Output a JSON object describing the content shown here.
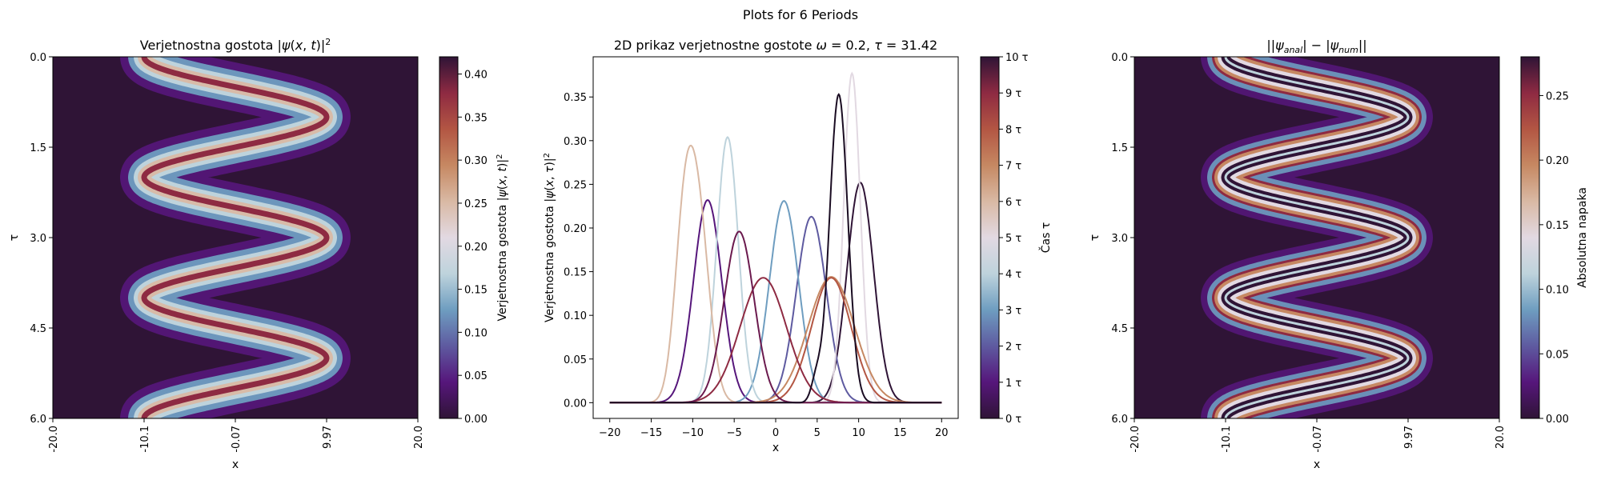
{
  "suptitle": "Plots for 6 Periods",
  "colors": {
    "colormap": [
      "#2f1436",
      "#56167b",
      "#5e5aa0",
      "#6e9dc0",
      "#bed3dc",
      "#e2d9e2",
      "#d9b9a4",
      "#c68862",
      "#b35643",
      "#8e2a42",
      "#2f1436"
    ]
  },
  "chart_data": [
    {
      "type": "heatmap",
      "title": "Verjetnostna gostota |ψ(x,t)|²",
      "xlabel": "x",
      "ylabel": "τ",
      "xticks": [
        "-20.0",
        "-10.1",
        "-0.07",
        "9.97",
        "20.0"
      ],
      "yticks": [
        "0.0",
        "1.5",
        "3.0",
        "4.5",
        "6.0"
      ],
      "xlim": [
        -20,
        20
      ],
      "ylim": [
        0,
        6
      ],
      "osc_center": 0,
      "osc_amplitude": 10,
      "osc_period": 2.0,
      "colorbar": {
        "label": "Verjetnostna gostota |ψ(x,t)|²",
        "ticks": [
          "0.00",
          "0.05",
          "0.10",
          "0.15",
          "0.20",
          "0.25",
          "0.30",
          "0.35",
          "0.40"
        ],
        "range": [
          0,
          0.42
        ]
      }
    },
    {
      "type": "line",
      "title": "2D prikaz verjetnostne gostote ω = 0.2, τ = 31.42",
      "xlabel": "x",
      "ylabel": "Verjetnostna gostota |ψ(x,τ)|²",
      "xlim": [
        -22,
        22
      ],
      "ylim": [
        -0.018,
        0.396
      ],
      "xticks": [
        "−20",
        "−15",
        "−10",
        "−5",
        "0",
        "5",
        "10",
        "15",
        "20"
      ],
      "yticks": [
        "0.00",
        "0.05",
        "0.10",
        "0.15",
        "0.20",
        "0.25",
        "0.30",
        "0.35"
      ],
      "series": [
        {
          "color": "#2f1436",
          "peaks": [
            {
              "x": 10.2,
              "y": 0.252,
              "w": 1.6
            }
          ]
        },
        {
          "color": "#56167b",
          "peaks": [
            {
              "x": -8.2,
              "y": 0.232,
              "w": 1.7
            }
          ]
        },
        {
          "color": "#5e5aa0",
          "peaks": [
            {
              "x": 4.3,
              "y": 0.213,
              "w": 1.8
            }
          ]
        },
        {
          "color": "#6e9dc0",
          "peaks": [
            {
              "x": 1.0,
              "y": 0.231,
              "w": 1.75
            }
          ]
        },
        {
          "color": "#bed3dc",
          "peaks": [
            {
              "x": -5.8,
              "y": 0.304,
              "w": 1.3
            }
          ]
        },
        {
          "color": "#e2d9e2",
          "peaks": [
            {
              "x": 9.2,
              "y": 0.377,
              "w": 1.0
            }
          ]
        },
        {
          "color": "#d9b9a4",
          "peaks": [
            {
              "x": -11.0,
              "y": 0.193,
              "w": 1.2
            },
            {
              "x": -9.2,
              "y": 0.188,
              "w": 1.3
            }
          ]
        },
        {
          "color": "#c68862",
          "peaks": [
            {
              "x": 6.7,
              "y": 0.144,
              "w": 2.8
            }
          ]
        },
        {
          "color": "#b35643",
          "peaks": [
            {
              "x": 6.7,
              "y": 0.143,
              "w": 2.4
            }
          ]
        },
        {
          "color": "#8e2a42",
          "peaks": [
            {
              "x": -1.5,
              "y": 0.143,
              "w": 2.8
            }
          ]
        },
        {
          "color": "#6b1a4e",
          "peaks": [
            {
              "x": -4.4,
              "y": 0.196,
              "w": 1.8
            }
          ]
        },
        {
          "color": "#1a0c22",
          "peaks": [
            {
              "x": 7.6,
              "y": 0.353,
              "w": 1.1
            },
            {
              "x": 4.9,
              "y": 0.025,
              "w": 0.6
            }
          ]
        }
      ],
      "colorbar": {
        "label": "Čas τ",
        "ticks": [
          "0 τ",
          "1 τ",
          "2 τ",
          "3 τ",
          "4 τ",
          "5 τ",
          "6 τ",
          "7 τ",
          "8 τ",
          "9 τ",
          "10 τ"
        ],
        "range": [
          0,
          10
        ]
      }
    },
    {
      "type": "heatmap",
      "title": "|ψanal| − |ψnum|",
      "xlabel": "x",
      "ylabel": "τ",
      "xticks": [
        "-20.0",
        "-10.1",
        "-0.07",
        "9.97",
        "20.0"
      ],
      "yticks": [
        "0.0",
        "1.5",
        "3.0",
        "4.5",
        "6.0"
      ],
      "xlim": [
        -20,
        20
      ],
      "ylim": [
        0,
        6
      ],
      "osc_center": 0,
      "osc_amplitude": 10,
      "osc_period": 2.0,
      "colorbar": {
        "label": "Absolutna napaka",
        "ticks": [
          "0.00",
          "0.05",
          "0.10",
          "0.15",
          "0.20",
          "0.25"
        ],
        "range": [
          0,
          0.28
        ]
      }
    }
  ]
}
